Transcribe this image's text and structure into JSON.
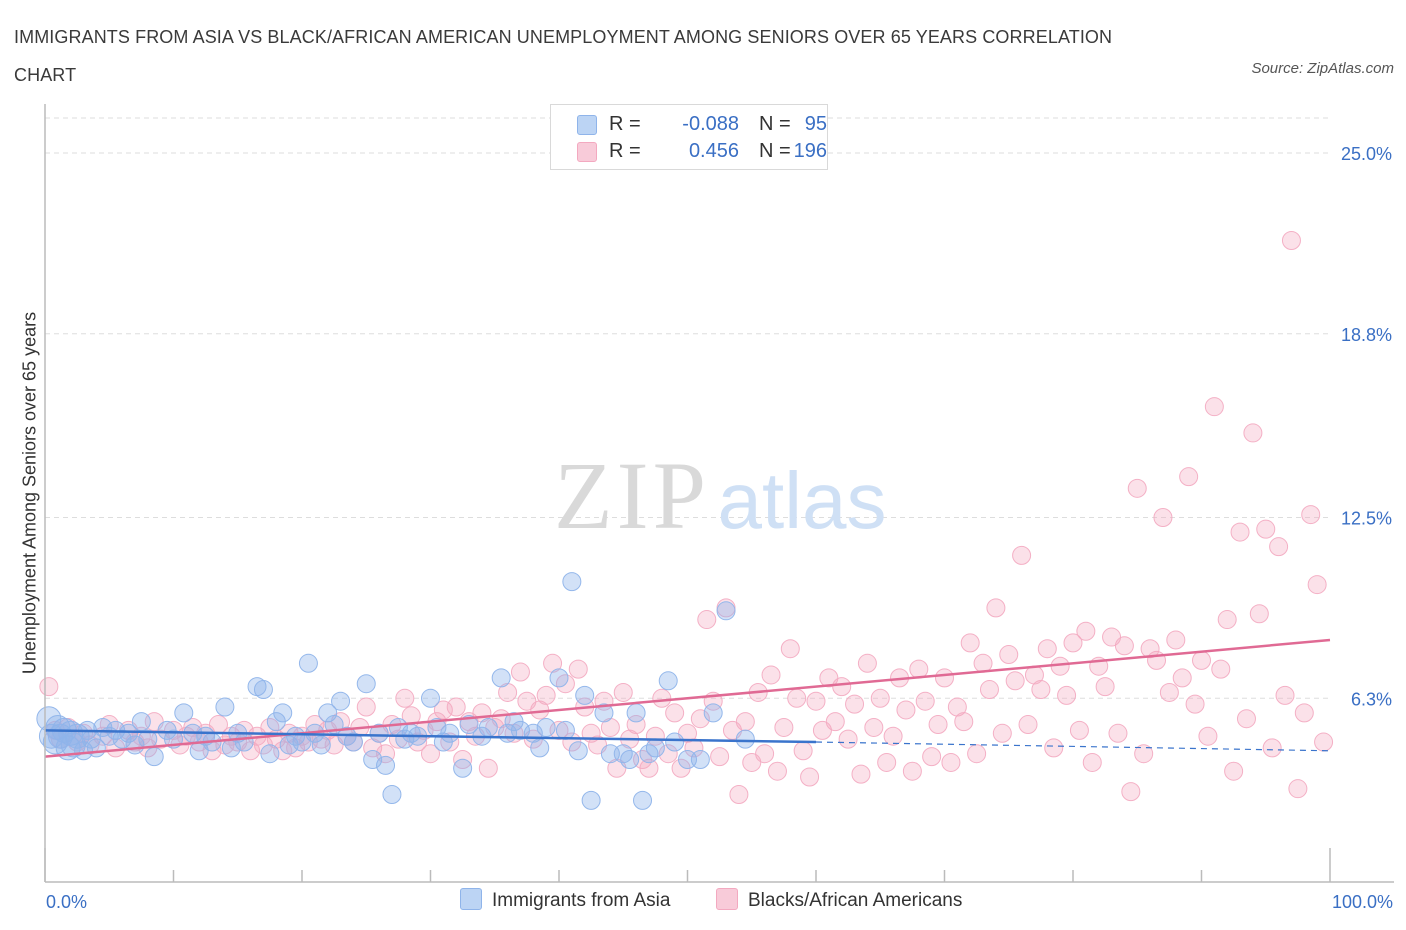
{
  "title": "IMMIGRANTS FROM ASIA VS BLACK/AFRICAN AMERICAN UNEMPLOYMENT AMONG SENIORS OVER 65 YEARS CORRELATION CHART",
  "source": "Source: ZipAtlas.com",
  "watermark": {
    "zip": "ZIP",
    "atlas": "atlas"
  },
  "legend": {
    "rows": [
      {
        "r_label": "R =",
        "r_value": "-0.088",
        "n_label": "N =",
        "n_value": "95"
      },
      {
        "r_label": "R =",
        "r_value": "0.456",
        "n_label": "N =",
        "n_value": "196"
      }
    ]
  },
  "bottom_legend": {
    "asia": "Immigrants from Asia",
    "black": "Blacks/African Americans"
  },
  "colors": {
    "asia": "#8fb4ea",
    "asia_line": "#3a74cc",
    "black": "#f3a9c0",
    "black_line": "#e06a94",
    "axis_text": "#3a6fc4",
    "grid": "#dddddd"
  },
  "chart_data": {
    "type": "scatter",
    "title": "IMMIGRANTS FROM ASIA VS BLACK/AFRICAN AMERICAN UNEMPLOYMENT AMONG SENIORS OVER 65 YEARS CORRELATION CHART",
    "xlabel": "",
    "ylabel": "Unemployment Among Seniors over 65 years",
    "xlim": [
      0,
      100
    ],
    "ylim": [
      0,
      26.2
    ],
    "x_tick_labels": [
      "0.0%",
      "100.0%"
    ],
    "y_ticks": [
      6.3,
      12.5,
      18.8,
      25.0
    ],
    "y_tick_labels": [
      "6.3%",
      "12.5%",
      "18.8%",
      "25.0%"
    ],
    "grid": true,
    "legend_position": "top-center",
    "series": [
      {
        "name": "Immigrants from Asia",
        "R": -0.088,
        "N": 95,
        "trend": {
          "x0": 0,
          "y0": 5.2,
          "x1": 60,
          "y1": 4.8,
          "dashed_to_x": 100,
          "dashed_to_y": 4.5
        },
        "points": [
          [
            0.3,
            5.6
          ],
          [
            0.5,
            5.0
          ],
          [
            0.8,
            4.8
          ],
          [
            1.0,
            5.3
          ],
          [
            1.2,
            5.0
          ],
          [
            1.5,
            5.2
          ],
          [
            1.8,
            4.6
          ],
          [
            2.0,
            5.1
          ],
          [
            2.2,
            4.7
          ],
          [
            2.5,
            5.0
          ],
          [
            3.0,
            4.5
          ],
          [
            3.3,
            5.2
          ],
          [
            3.6,
            4.9
          ],
          [
            4.0,
            4.6
          ],
          [
            4.5,
            5.3
          ],
          [
            5.0,
            5.0
          ],
          [
            5.5,
            5.2
          ],
          [
            6.0,
            4.9
          ],
          [
            6.5,
            5.1
          ],
          [
            7.0,
            4.7
          ],
          [
            7.5,
            5.5
          ],
          [
            8.0,
            4.9
          ],
          [
            8.5,
            4.3
          ],
          [
            9.5,
            5.2
          ],
          [
            10.0,
            4.9
          ],
          [
            10.8,
            5.8
          ],
          [
            11.5,
            5.1
          ],
          [
            12.0,
            4.5
          ],
          [
            12.5,
            5.0
          ],
          [
            13.0,
            4.8
          ],
          [
            14.0,
            6.0
          ],
          [
            14.5,
            4.6
          ],
          [
            15.0,
            5.1
          ],
          [
            15.5,
            4.8
          ],
          [
            16.5,
            6.7
          ],
          [
            17.0,
            6.6
          ],
          [
            17.5,
            4.4
          ],
          [
            18.0,
            5.5
          ],
          [
            18.5,
            5.8
          ],
          [
            19.0,
            4.7
          ],
          [
            19.5,
            5.0
          ],
          [
            20.0,
            4.8
          ],
          [
            20.5,
            7.5
          ],
          [
            21.0,
            5.1
          ],
          [
            21.5,
            4.7
          ],
          [
            22.0,
            5.8
          ],
          [
            22.5,
            5.4
          ],
          [
            23.0,
            6.2
          ],
          [
            23.5,
            5.0
          ],
          [
            24.0,
            4.8
          ],
          [
            25.0,
            6.8
          ],
          [
            25.5,
            4.2
          ],
          [
            26.0,
            5.1
          ],
          [
            26.5,
            4.0
          ],
          [
            27.0,
            3.0
          ],
          [
            27.5,
            5.3
          ],
          [
            28.0,
            4.9
          ],
          [
            28.5,
            5.1
          ],
          [
            29.0,
            5.0
          ],
          [
            30.0,
            6.3
          ],
          [
            30.5,
            5.3
          ],
          [
            31.0,
            4.8
          ],
          [
            31.5,
            5.1
          ],
          [
            32.5,
            3.9
          ],
          [
            33.0,
            5.4
          ],
          [
            34.0,
            5.0
          ],
          [
            34.5,
            5.3
          ],
          [
            35.5,
            7.0
          ],
          [
            36.0,
            5.1
          ],
          [
            36.5,
            5.5
          ],
          [
            37.0,
            5.2
          ],
          [
            38.0,
            5.1
          ],
          [
            38.5,
            4.6
          ],
          [
            39.0,
            5.3
          ],
          [
            40.0,
            7.0
          ],
          [
            40.5,
            5.2
          ],
          [
            41.0,
            10.3
          ],
          [
            41.5,
            4.5
          ],
          [
            42.0,
            6.4
          ],
          [
            42.5,
            2.8
          ],
          [
            43.5,
            5.8
          ],
          [
            44.0,
            4.4
          ],
          [
            45.0,
            4.4
          ],
          [
            45.5,
            4.2
          ],
          [
            46.0,
            5.8
          ],
          [
            46.5,
            2.8
          ],
          [
            47.0,
            4.4
          ],
          [
            47.5,
            4.6
          ],
          [
            48.5,
            6.9
          ],
          [
            49.0,
            4.8
          ],
          [
            50.0,
            4.2
          ],
          [
            51.0,
            4.2
          ],
          [
            52.0,
            5.8
          ],
          [
            53.0,
            9.3
          ],
          [
            54.5,
            4.9
          ]
        ]
      },
      {
        "name": "Blacks/African Americans",
        "R": 0.456,
        "N": 196,
        "trend": {
          "x0": 0,
          "y0": 4.3,
          "x1": 100,
          "y1": 8.3
        },
        "points": [
          [
            0.3,
            6.7
          ],
          [
            0.8,
            5.2
          ],
          [
            1.2,
            4.9
          ],
          [
            1.8,
            5.3
          ],
          [
            2.5,
            4.8
          ],
          [
            3.0,
            5.1
          ],
          [
            3.5,
            4.7
          ],
          [
            4.5,
            5.0
          ],
          [
            5.0,
            5.4
          ],
          [
            5.5,
            4.6
          ],
          [
            6.5,
            5.2
          ],
          [
            7.0,
            4.8
          ],
          [
            7.5,
            5.0
          ],
          [
            8.0,
            4.6
          ],
          [
            8.5,
            5.5
          ],
          [
            9.0,
            4.9
          ],
          [
            10.0,
            5.2
          ],
          [
            10.5,
            4.7
          ],
          [
            11.0,
            5.0
          ],
          [
            11.5,
            5.3
          ],
          [
            12.0,
            4.8
          ],
          [
            12.5,
            5.1
          ],
          [
            13.0,
            4.5
          ],
          [
            13.5,
            5.4
          ],
          [
            14.0,
            4.7
          ],
          [
            14.5,
            5.0
          ],
          [
            15.0,
            4.8
          ],
          [
            15.5,
            5.2
          ],
          [
            16.0,
            4.5
          ],
          [
            16.5,
            5.0
          ],
          [
            17.0,
            4.7
          ],
          [
            17.5,
            5.3
          ],
          [
            18.0,
            4.9
          ],
          [
            18.5,
            4.5
          ],
          [
            19.0,
            5.1
          ],
          [
            19.5,
            4.6
          ],
          [
            20.0,
            5.0
          ],
          [
            20.5,
            4.8
          ],
          [
            21.0,
            5.4
          ],
          [
            21.5,
            4.9
          ],
          [
            22.0,
            5.2
          ],
          [
            22.5,
            4.7
          ],
          [
            23.0,
            5.5
          ],
          [
            23.5,
            5.0
          ],
          [
            24.0,
            4.8
          ],
          [
            24.5,
            5.3
          ],
          [
            25.0,
            6.0
          ],
          [
            25.5,
            4.6
          ],
          [
            26.0,
            5.1
          ],
          [
            26.5,
            4.4
          ],
          [
            27.0,
            5.4
          ],
          [
            27.5,
            4.9
          ],
          [
            28.0,
            6.3
          ],
          [
            28.5,
            5.7
          ],
          [
            29.0,
            4.8
          ],
          [
            29.5,
            5.2
          ],
          [
            30.0,
            4.4
          ],
          [
            30.5,
            5.5
          ],
          [
            31.0,
            5.9
          ],
          [
            31.5,
            4.8
          ],
          [
            32.0,
            6.0
          ],
          [
            32.5,
            4.2
          ],
          [
            33.0,
            5.5
          ],
          [
            33.5,
            5.0
          ],
          [
            34.0,
            5.8
          ],
          [
            34.5,
            3.9
          ],
          [
            35.0,
            5.3
          ],
          [
            35.5,
            5.6
          ],
          [
            36.0,
            6.5
          ],
          [
            36.5,
            5.1
          ],
          [
            37.0,
            7.2
          ],
          [
            37.5,
            6.2
          ],
          [
            38.0,
            4.9
          ],
          [
            38.5,
            5.9
          ],
          [
            39.0,
            6.4
          ],
          [
            39.5,
            7.5
          ],
          [
            40.0,
            5.2
          ],
          [
            40.5,
            6.8
          ],
          [
            41.0,
            4.8
          ],
          [
            41.5,
            7.3
          ],
          [
            42.0,
            6.0
          ],
          [
            42.5,
            5.1
          ],
          [
            43.0,
            4.7
          ],
          [
            43.5,
            6.2
          ],
          [
            44.0,
            5.3
          ],
          [
            44.5,
            3.9
          ],
          [
            45.0,
            6.5
          ],
          [
            45.5,
            4.9
          ],
          [
            46.0,
            5.4
          ],
          [
            46.5,
            4.2
          ],
          [
            47.0,
            3.9
          ],
          [
            47.5,
            5.0
          ],
          [
            48.0,
            6.3
          ],
          [
            48.5,
            4.4
          ],
          [
            49.0,
            5.8
          ],
          [
            49.5,
            3.9
          ],
          [
            50.0,
            5.1
          ],
          [
            50.5,
            4.6
          ],
          [
            51.0,
            5.6
          ],
          [
            51.5,
            9.0
          ],
          [
            52.0,
            6.2
          ],
          [
            52.5,
            4.3
          ],
          [
            53.0,
            9.4
          ],
          [
            53.5,
            5.2
          ],
          [
            54.0,
            3.0
          ],
          [
            54.5,
            5.5
          ],
          [
            55.0,
            4.1
          ],
          [
            55.5,
            6.5
          ],
          [
            56.0,
            4.4
          ],
          [
            56.5,
            7.1
          ],
          [
            57.0,
            3.8
          ],
          [
            57.5,
            5.3
          ],
          [
            58.0,
            8.0
          ],
          [
            58.5,
            6.3
          ],
          [
            59.0,
            4.5
          ],
          [
            59.5,
            3.6
          ],
          [
            60.0,
            6.2
          ],
          [
            60.5,
            5.2
          ],
          [
            61.0,
            7.0
          ],
          [
            61.5,
            5.5
          ],
          [
            62.0,
            6.7
          ],
          [
            62.5,
            4.9
          ],
          [
            63.0,
            6.1
          ],
          [
            63.5,
            3.7
          ],
          [
            64.0,
            7.5
          ],
          [
            64.5,
            5.3
          ],
          [
            65.0,
            6.3
          ],
          [
            65.5,
            4.1
          ],
          [
            66.0,
            5.0
          ],
          [
            66.5,
            7.0
          ],
          [
            67.0,
            5.9
          ],
          [
            67.5,
            3.8
          ],
          [
            68.0,
            7.3
          ],
          [
            68.5,
            6.2
          ],
          [
            69.0,
            4.3
          ],
          [
            69.5,
            5.4
          ],
          [
            70.0,
            7.0
          ],
          [
            70.5,
            4.1
          ],
          [
            71.0,
            6.0
          ],
          [
            71.5,
            5.5
          ],
          [
            72.0,
            8.2
          ],
          [
            72.5,
            4.4
          ],
          [
            73.0,
            7.5
          ],
          [
            73.5,
            6.6
          ],
          [
            74.0,
            9.4
          ],
          [
            74.5,
            5.1
          ],
          [
            75.0,
            7.8
          ],
          [
            75.5,
            6.9
          ],
          [
            76.0,
            11.2
          ],
          [
            76.5,
            5.4
          ],
          [
            77.0,
            7.1
          ],
          [
            77.5,
            6.6
          ],
          [
            78.0,
            8.0
          ],
          [
            78.5,
            4.6
          ],
          [
            79.0,
            7.4
          ],
          [
            79.5,
            6.4
          ],
          [
            80.0,
            8.2
          ],
          [
            80.5,
            5.2
          ],
          [
            81.0,
            8.6
          ],
          [
            81.5,
            4.1
          ],
          [
            82.0,
            7.4
          ],
          [
            82.5,
            6.7
          ],
          [
            83.0,
            8.4
          ],
          [
            83.5,
            5.1
          ],
          [
            84.0,
            8.1
          ],
          [
            84.5,
            3.1
          ],
          [
            85.0,
            13.5
          ],
          [
            85.5,
            4.4
          ],
          [
            86.0,
            8.0
          ],
          [
            86.5,
            7.6
          ],
          [
            87.0,
            12.5
          ],
          [
            87.5,
            6.5
          ],
          [
            88.0,
            8.3
          ],
          [
            88.5,
            7.0
          ],
          [
            89.0,
            13.9
          ],
          [
            89.5,
            6.1
          ],
          [
            90.0,
            7.6
          ],
          [
            90.5,
            5.0
          ],
          [
            91.0,
            16.3
          ],
          [
            91.5,
            7.3
          ],
          [
            92.0,
            9.0
          ],
          [
            92.5,
            3.8
          ],
          [
            93.0,
            12.0
          ],
          [
            93.5,
            5.6
          ],
          [
            94.0,
            15.4
          ],
          [
            94.5,
            9.2
          ],
          [
            95.0,
            12.1
          ],
          [
            95.5,
            4.6
          ],
          [
            96.0,
            11.5
          ],
          [
            96.5,
            6.4
          ],
          [
            97.0,
            22.0
          ],
          [
            97.5,
            3.2
          ],
          [
            98.0,
            5.8
          ],
          [
            98.5,
            12.6
          ],
          [
            99.0,
            10.2
          ],
          [
            99.5,
            4.8
          ]
        ]
      }
    ]
  }
}
